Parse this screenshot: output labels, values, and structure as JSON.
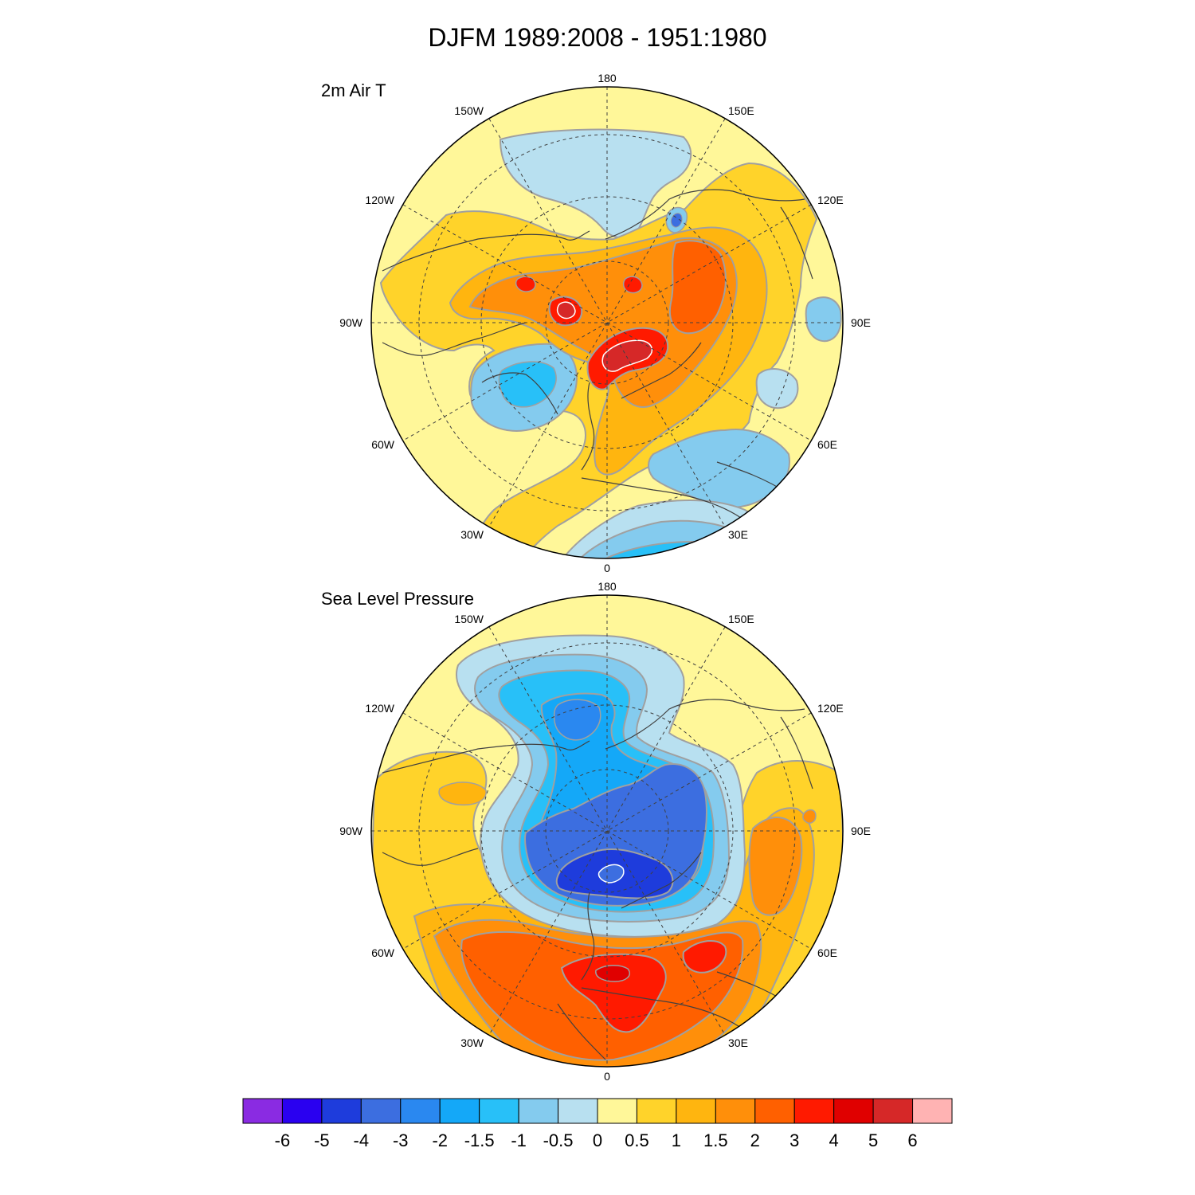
{
  "figure": {
    "title": "DJFM 1989:2008 - 1951:1980"
  },
  "panels": [
    {
      "title": "2m Air T",
      "labels": {
        "top": "180",
        "bottom": "0",
        "left": "90W",
        "right": "90E",
        "upper_left_1": "150W",
        "upper_right_1": "150E",
        "upper_left_2": "120W",
        "upper_right_2": "120E",
        "lower_left_1": "60W",
        "lower_right_1": "60E",
        "lower_left_2": "30W",
        "lower_right_2": "30E"
      }
    },
    {
      "title": "Sea Level Pressure",
      "labels": {
        "top": "180",
        "bottom": "0",
        "left": "90W",
        "right": "90E",
        "upper_left_1": "150W",
        "upper_right_1": "150E",
        "upper_left_2": "120W",
        "upper_right_2": "120E",
        "lower_left_1": "60W",
        "lower_right_1": "60E",
        "lower_left_2": "30W",
        "lower_right_2": "30E"
      }
    }
  ],
  "colorbar": {
    "colors": [
      "#8a2be2",
      "#2a00f0",
      "#1e3cdc",
      "#3c6ee0",
      "#2a88f0",
      "#14a8f8",
      "#28c0f8",
      "#84cbee",
      "#b8e0f0",
      "#fff799",
      "#ffd32a",
      "#ffb50f",
      "#ff8f0a",
      "#ff6000",
      "#ff1a00",
      "#e00000",
      "#d62828",
      "#ffb3b3"
    ],
    "labels": [
      "-6",
      "-5",
      "-4",
      "-3",
      "-2",
      "-1.5",
      "-1",
      "-0.5",
      "0",
      "0.5",
      "1",
      "1.5",
      "2",
      "3",
      "4",
      "5",
      "6"
    ]
  },
  "palette": {
    "background": "#fff799",
    "ocean_cold_light": "#b8e0f0",
    "cold_mid": "#84cbee",
    "cold_strong": "#28c0f8",
    "cold_stronger": "#14a8f8",
    "cold_deep": "#2a88f0",
    "cold_deeper": "#3c6ee0",
    "cold_extreme": "#1e3cdc",
    "warm_light": "#ffd32a",
    "warm_mid": "#ffb50f",
    "warm_strong": "#ff8f0a",
    "warm_stronger": "#ff6000",
    "warm_extreme": "#ff1a00",
    "warm_max": "#e00000",
    "warm_top": "#d62828",
    "contour": "#a0a0a0",
    "coast": "#404040"
  }
}
